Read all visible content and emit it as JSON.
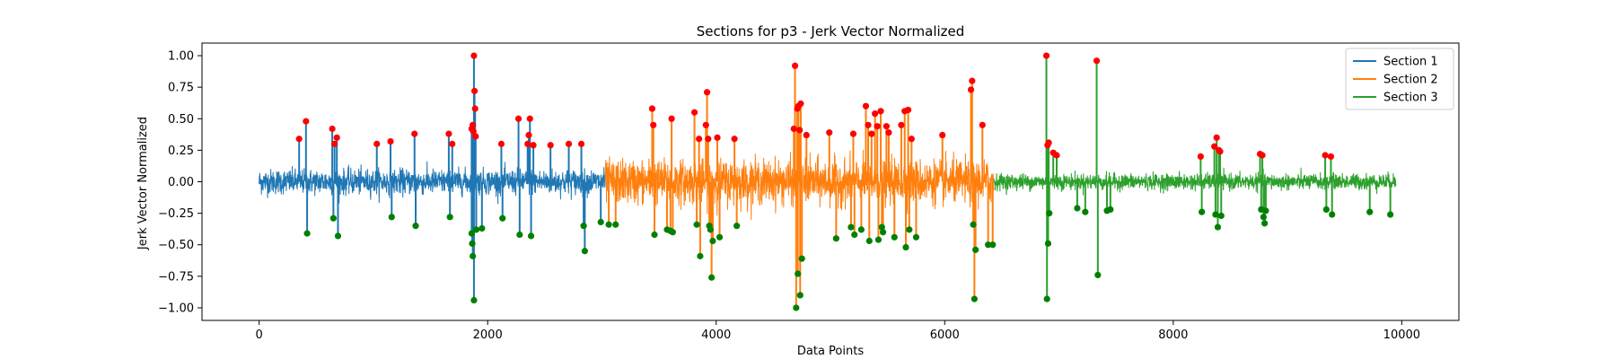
{
  "chart_data": {
    "type": "line",
    "title": "Sections for p3 - Jerk Vector Normalized",
    "xlabel": "Data Points",
    "ylabel": "Jerk Vector Normalized",
    "xlim": [
      -500,
      10500
    ],
    "ylim": [
      -1.1,
      1.1
    ],
    "x_ticks": [
      0,
      2000,
      4000,
      6000,
      8000,
      10000
    ],
    "x_tick_labels": [
      "0",
      "2000",
      "4000",
      "6000",
      "8000",
      "10000"
    ],
    "y_ticks": [
      -1.0,
      -0.75,
      -0.5,
      -0.25,
      0.0,
      0.25,
      0.5,
      0.75,
      1.0
    ],
    "y_tick_labels": [
      "−1.00",
      "−0.75",
      "−0.50",
      "−0.25",
      "0.00",
      "0.25",
      "0.50",
      "0.75",
      "1.00"
    ],
    "grid": false,
    "legend_position": "top-right",
    "series": [
      {
        "name": "Section 1",
        "color": "#1f77b4",
        "x_range": [
          0,
          3030
        ],
        "noise_amp": 0.11,
        "spikes": [
          [
            350,
            0.34
          ],
          [
            410,
            0.48
          ],
          [
            420,
            -0.41
          ],
          [
            640,
            0.42
          ],
          [
            660,
            0.3
          ],
          [
            650,
            -0.29
          ],
          [
            680,
            0.35
          ],
          [
            690,
            -0.43
          ],
          [
            1030,
            0.3
          ],
          [
            1150,
            0.32
          ],
          [
            1160,
            -0.28
          ],
          [
            1360,
            0.38
          ],
          [
            1370,
            -0.35
          ],
          [
            1660,
            0.38
          ],
          [
            1670,
            -0.28
          ],
          [
            1690,
            0.3
          ],
          [
            1860,
            0.42
          ],
          [
            1860,
            -0.41
          ],
          [
            1865,
            -0.49
          ],
          [
            1870,
            0.45
          ],
          [
            1870,
            -0.59
          ],
          [
            1875,
            0.4
          ],
          [
            1880,
            1.0
          ],
          [
            1880,
            -0.94
          ],
          [
            1885,
            0.72
          ],
          [
            1890,
            0.58
          ],
          [
            1895,
            0.36
          ],
          [
            1900,
            -0.38
          ],
          [
            1950,
            -0.37
          ],
          [
            2120,
            0.3
          ],
          [
            2130,
            -0.29
          ],
          [
            2270,
            0.5
          ],
          [
            2280,
            -0.42
          ],
          [
            2350,
            0.3
          ],
          [
            2360,
            0.37
          ],
          [
            2370,
            0.5
          ],
          [
            2380,
            -0.43
          ],
          [
            2400,
            0.29
          ],
          [
            2550,
            0.29
          ],
          [
            2710,
            0.3
          ],
          [
            2820,
            0.3
          ],
          [
            2840,
            -0.35
          ],
          [
            2850,
            -0.55
          ],
          [
            2990,
            -0.32
          ]
        ]
      },
      {
        "name": "Section 2",
        "color": "#ff7f0e",
        "x_range": [
          3030,
          6430
        ],
        "noise_amp": 0.19,
        "spikes": [
          [
            3060,
            -0.34
          ],
          [
            3120,
            -0.34
          ],
          [
            3440,
            0.58
          ],
          [
            3450,
            0.45
          ],
          [
            3460,
            -0.42
          ],
          [
            3570,
            -0.38
          ],
          [
            3600,
            -0.39
          ],
          [
            3610,
            0.5
          ],
          [
            3620,
            -0.4
          ],
          [
            3810,
            0.55
          ],
          [
            3830,
            -0.34
          ],
          [
            3850,
            0.34
          ],
          [
            3860,
            -0.59
          ],
          [
            3910,
            0.45
          ],
          [
            3920,
            0.71
          ],
          [
            3930,
            0.34
          ],
          [
            3940,
            -0.35
          ],
          [
            3950,
            -0.38
          ],
          [
            3960,
            -0.76
          ],
          [
            3970,
            -0.47
          ],
          [
            4010,
            0.35
          ],
          [
            4030,
            -0.44
          ],
          [
            4160,
            0.34
          ],
          [
            4180,
            -0.35
          ],
          [
            4680,
            0.42
          ],
          [
            4690,
            0.92
          ],
          [
            4700,
            -1.0
          ],
          [
            4710,
            0.58
          ],
          [
            4715,
            -0.73
          ],
          [
            4720,
            0.6
          ],
          [
            4730,
            0.41
          ],
          [
            4735,
            -0.9
          ],
          [
            4740,
            0.62
          ],
          [
            4750,
            -0.61
          ],
          [
            4790,
            0.37
          ],
          [
            4990,
            0.39
          ],
          [
            5050,
            -0.45
          ],
          [
            5180,
            -0.36
          ],
          [
            5200,
            0.38
          ],
          [
            5210,
            -0.42
          ],
          [
            5270,
            -0.38
          ],
          [
            5310,
            0.6
          ],
          [
            5330,
            0.45
          ],
          [
            5340,
            -0.47
          ],
          [
            5360,
            0.38
          ],
          [
            5390,
            0.54
          ],
          [
            5410,
            0.44
          ],
          [
            5420,
            -0.46
          ],
          [
            5440,
            0.56
          ],
          [
            5450,
            -0.36
          ],
          [
            5460,
            -0.4
          ],
          [
            5490,
            0.44
          ],
          [
            5510,
            0.39
          ],
          [
            5560,
            -0.44
          ],
          [
            5620,
            0.45
          ],
          [
            5650,
            0.56
          ],
          [
            5660,
            -0.52
          ],
          [
            5680,
            0.57
          ],
          [
            5690,
            -0.38
          ],
          [
            5710,
            0.34
          ],
          [
            5750,
            -0.44
          ],
          [
            5980,
            0.37
          ],
          [
            6230,
            0.73
          ],
          [
            6240,
            0.8
          ],
          [
            6250,
            -0.34
          ],
          [
            6260,
            -0.93
          ],
          [
            6270,
            -0.54
          ],
          [
            6330,
            0.45
          ],
          [
            6380,
            -0.5
          ],
          [
            6420,
            -0.5
          ]
        ]
      },
      {
        "name": "Section 3",
        "color": "#2ca02c",
        "x_range": [
          6430,
          9950
        ],
        "noise_amp": 0.07,
        "spikes": [
          [
            6890,
            1.0
          ],
          [
            6895,
            -0.93
          ],
          [
            6900,
            0.29
          ],
          [
            6905,
            -0.49
          ],
          [
            6910,
            0.31
          ],
          [
            6915,
            -0.25
          ],
          [
            6950,
            0.23
          ],
          [
            6980,
            0.21
          ],
          [
            7160,
            -0.21
          ],
          [
            7230,
            -0.24
          ],
          [
            7330,
            0.96
          ],
          [
            7340,
            -0.74
          ],
          [
            7420,
            -0.23
          ],
          [
            7450,
            -0.22
          ],
          [
            8240,
            0.2
          ],
          [
            8250,
            -0.24
          ],
          [
            8360,
            0.28
          ],
          [
            8370,
            -0.26
          ],
          [
            8380,
            0.35
          ],
          [
            8390,
            -0.36
          ],
          [
            8400,
            0.25
          ],
          [
            8410,
            0.24
          ],
          [
            8420,
            -0.27
          ],
          [
            8760,
            0.22
          ],
          [
            8770,
            -0.22
          ],
          [
            8780,
            0.21
          ],
          [
            8790,
            -0.28
          ],
          [
            8800,
            -0.33
          ],
          [
            8810,
            -0.23
          ],
          [
            9330,
            0.21
          ],
          [
            9340,
            -0.22
          ],
          [
            9380,
            0.2
          ],
          [
            9390,
            -0.26
          ],
          [
            9720,
            -0.24
          ],
          [
            9900,
            -0.26
          ]
        ]
      }
    ],
    "markers": {
      "max_color": "#ff0000",
      "min_color": "#008000"
    }
  }
}
